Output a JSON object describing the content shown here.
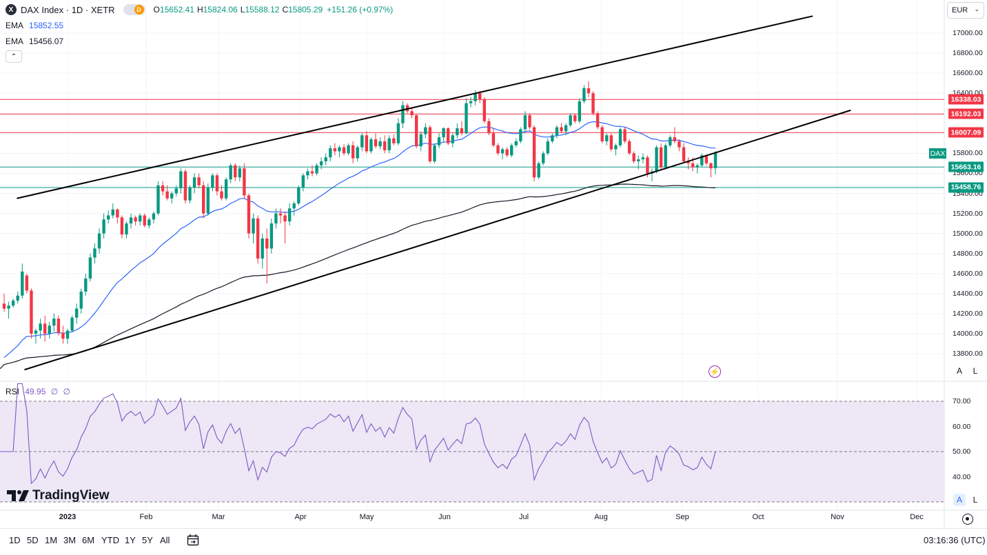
{
  "header": {
    "symbol_title": "DAX Index · 1D · XETR",
    "badge_x": "X",
    "badge_d": "D",
    "ohlc": {
      "o_label": "O",
      "o_value": "15652.41",
      "h_label": "H",
      "h_value": "15824.06",
      "l_label": "L",
      "l_value": "15588.12",
      "c_label": "C",
      "c_value": "15805.29",
      "change": "+151.26 (+0.97%)"
    },
    "ema1": {
      "name": "EMA",
      "value": "15852.55"
    },
    "ema2": {
      "name": "EMA",
      "value": "15456.07"
    },
    "collapse_glyph": "⌃"
  },
  "currency": {
    "label": "EUR",
    "chevron": "⌄"
  },
  "price_axis": {
    "ticks": [
      "17000.00",
      "16800.00",
      "16600.00",
      "16400.00",
      "16200.00",
      "16000.00",
      "15800.00",
      "15600.00",
      "15400.00",
      "15200.00",
      "15000.00",
      "14800.00",
      "14600.00",
      "14400.00",
      "14200.00",
      "14000.00",
      "13800.00"
    ],
    "tags": [
      {
        "label": "16338.03",
        "color": "#f23645"
      },
      {
        "label": "16192.03",
        "color": "#f23645"
      },
      {
        "label": "16007.09",
        "color": "#f23645"
      },
      {
        "label": "15663.16",
        "color": "#089981"
      },
      {
        "label": "15458.76",
        "color": "#089981"
      }
    ],
    "symbol_tag": "DAX",
    "auto_btn": "A",
    "log_btn": "L"
  },
  "rsi": {
    "name": "RSI",
    "value": "49.95",
    "extra1": "∅",
    "extra2": "∅",
    "ticks": [
      "70.00",
      "60.00",
      "50.00",
      "40.00"
    ],
    "auto_btn": "A",
    "log_btn": "L"
  },
  "time_axis": {
    "labels": [
      "2023",
      "Feb",
      "Mar",
      "Apr",
      "May",
      "Jun",
      "Jul",
      "Aug",
      "Sep",
      "Oct",
      "Nov",
      "Dec"
    ]
  },
  "bottom": {
    "ranges": [
      "1D",
      "5D",
      "1M",
      "3M",
      "6M",
      "YTD",
      "1Y",
      "5Y",
      "All"
    ],
    "clock": "03:16:36 (UTC)"
  },
  "brand": {
    "name": "TradingView"
  },
  "colors": {
    "up": "#089981",
    "down": "#f23645",
    "ema_fast": "#2962ff",
    "ema_slow": "#131722",
    "rsi": "#7e57c2",
    "rsi_band": "#ede7f6"
  },
  "icons": {
    "flash": "⚡",
    "calendar": "calendar-icon",
    "reset": "reset-scale-icon"
  },
  "chart_data": {
    "type": "candlestick",
    "price_range": [
      13700,
      17200
    ],
    "horizontal_levels": [
      16338.03,
      16192.03,
      16007.09,
      15663.16,
      15458.76
    ],
    "channel_upper": [
      {
        "x": "2022-12-12",
        "y": 15350
      },
      {
        "x": "2023-10-22",
        "y": 17170
      }
    ],
    "channel_lower": [
      {
        "x": "2022-12-15",
        "y": 13640
      },
      {
        "x": "2023-11-06",
        "y": 16230
      }
    ],
    "candles": [
      [
        14300,
        14400,
        14220,
        14250
      ],
      [
        14250,
        14320,
        14150,
        14280
      ],
      [
        14280,
        14350,
        14260,
        14330
      ],
      [
        14330,
        14420,
        14300,
        14380
      ],
      [
        14380,
        14700,
        14350,
        14620
      ],
      [
        14580,
        14600,
        14400,
        14430
      ],
      [
        14430,
        14450,
        13950,
        14000
      ],
      [
        14000,
        14050,
        13900,
        14030
      ],
      [
        14030,
        14150,
        13950,
        14100
      ],
      [
        14100,
        14180,
        13920,
        14000
      ],
      [
        14000,
        14120,
        13950,
        14080
      ],
      [
        14080,
        14200,
        14020,
        14150
      ],
      [
        14150,
        14180,
        13980,
        14010
      ],
      [
        14010,
        14080,
        13900,
        13950
      ],
      [
        13950,
        14050,
        13900,
        14030
      ],
      [
        14030,
        14180,
        14010,
        14160
      ],
      [
        14160,
        14300,
        14100,
        14250
      ],
      [
        14250,
        14450,
        14200,
        14420
      ],
      [
        14420,
        14600,
        14380,
        14550
      ],
      [
        14550,
        14800,
        14520,
        14760
      ],
      [
        14760,
        14900,
        14700,
        14850
      ],
      [
        14850,
        15050,
        14800,
        15000
      ],
      [
        15000,
        15200,
        14950,
        15140
      ],
      [
        15140,
        15230,
        15100,
        15180
      ],
      [
        15180,
        15300,
        15150,
        15240
      ],
      [
        15240,
        15250,
        15100,
        15160
      ],
      [
        15160,
        15180,
        14950,
        14990
      ],
      [
        14990,
        15120,
        14950,
        15100
      ],
      [
        15100,
        15200,
        15050,
        15160
      ],
      [
        15160,
        15180,
        15080,
        15120
      ],
      [
        15120,
        15200,
        15080,
        15180
      ],
      [
        15180,
        15200,
        15060,
        15080
      ],
      [
        15080,
        15160,
        15050,
        15140
      ],
      [
        15140,
        15220,
        15100,
        15200
      ],
      [
        15200,
        15520,
        15180,
        15480
      ],
      [
        15480,
        15520,
        15380,
        15420
      ],
      [
        15420,
        15480,
        15330,
        15350
      ],
      [
        15350,
        15420,
        15300,
        15400
      ],
      [
        15400,
        15480,
        15370,
        15450
      ],
      [
        15450,
        15650,
        15400,
        15620
      ],
      [
        15620,
        15640,
        15300,
        15330
      ],
      [
        15330,
        15480,
        15300,
        15460
      ],
      [
        15460,
        15600,
        15400,
        15560
      ],
      [
        15560,
        15600,
        15450,
        15480
      ],
      [
        15480,
        15520,
        15150,
        15200
      ],
      [
        15200,
        15500,
        15180,
        15460
      ],
      [
        15460,
        15600,
        15420,
        15580
      ],
      [
        15580,
        15600,
        15380,
        15420
      ],
      [
        15420,
        15480,
        15330,
        15350
      ],
      [
        15350,
        15560,
        15330,
        15540
      ],
      [
        15540,
        15700,
        15500,
        15680
      ],
      [
        15680,
        15700,
        15520,
        15560
      ],
      [
        15560,
        15680,
        15520,
        15650
      ],
      [
        15650,
        15700,
        15350,
        15380
      ],
      [
        15380,
        15400,
        14950,
        15000
      ],
      [
        15000,
        15200,
        14900,
        15150
      ],
      [
        15150,
        15180,
        14700,
        14750
      ],
      [
        14750,
        15000,
        14650,
        14950
      ],
      [
        14950,
        15050,
        14500,
        14850
      ],
      [
        14850,
        15150,
        14800,
        15100
      ],
      [
        15100,
        15250,
        15050,
        15200
      ],
      [
        15200,
        15250,
        15100,
        15180
      ],
      [
        15180,
        15220,
        14900,
        15120
      ],
      [
        15120,
        15300,
        15080,
        15250
      ],
      [
        15250,
        15320,
        15180,
        15300
      ],
      [
        15300,
        15480,
        15280,
        15460
      ],
      [
        15460,
        15600,
        15420,
        15580
      ],
      [
        15580,
        15650,
        15540,
        15620
      ],
      [
        15620,
        15680,
        15570,
        15600
      ],
      [
        15600,
        15700,
        15580,
        15680
      ],
      [
        15680,
        15760,
        15640,
        15720
      ],
      [
        15720,
        15800,
        15680,
        15760
      ],
      [
        15760,
        15880,
        15720,
        15850
      ],
      [
        15850,
        15900,
        15780,
        15820
      ],
      [
        15820,
        15880,
        15760,
        15860
      ],
      [
        15860,
        15890,
        15780,
        15800
      ],
      [
        15800,
        15900,
        15780,
        15880
      ],
      [
        15880,
        15920,
        15700,
        15750
      ],
      [
        15750,
        15880,
        15720,
        15860
      ],
      [
        15860,
        16000,
        15820,
        15980
      ],
      [
        15980,
        16020,
        15800,
        15820
      ],
      [
        15820,
        15960,
        15800,
        15940
      ],
      [
        15940,
        16000,
        15850,
        15870
      ],
      [
        15870,
        15960,
        15840,
        15920
      ],
      [
        15920,
        15980,
        15800,
        15830
      ],
      [
        15830,
        15980,
        15800,
        15950
      ],
      [
        15950,
        15990,
        15880,
        15900
      ],
      [
        15900,
        16150,
        15880,
        16100
      ],
      [
        16100,
        16320,
        16050,
        16280
      ],
      [
        16280,
        16300,
        16200,
        16220
      ],
      [
        16220,
        16250,
        16150,
        16180
      ],
      [
        16180,
        16190,
        15850,
        15870
      ],
      [
        15870,
        16020,
        15820,
        15990
      ],
      [
        15990,
        16100,
        15950,
        16060
      ],
      [
        16060,
        16080,
        15700,
        15720
      ],
      [
        15720,
        15900,
        15700,
        15880
      ],
      [
        15880,
        16000,
        15850,
        15960
      ],
      [
        15960,
        16060,
        15920,
        16050
      ],
      [
        16050,
        16060,
        15880,
        15900
      ],
      [
        15900,
        16000,
        15860,
        15980
      ],
      [
        15980,
        16100,
        15950,
        16050
      ],
      [
        16050,
        16120,
        15980,
        16000
      ],
      [
        16000,
        16350,
        15990,
        16300
      ],
      [
        16300,
        16360,
        16260,
        16320
      ],
      [
        16320,
        16430,
        16280,
        16400
      ],
      [
        16400,
        16420,
        16300,
        16340
      ],
      [
        16340,
        16360,
        16100,
        16120
      ],
      [
        16120,
        16150,
        15980,
        16000
      ],
      [
        16000,
        16050,
        15860,
        15880
      ],
      [
        15880,
        15900,
        15780,
        15800
      ],
      [
        15800,
        15860,
        15740,
        15840
      ],
      [
        15840,
        15860,
        15760,
        15780
      ],
      [
        15780,
        15900,
        15760,
        15880
      ],
      [
        15880,
        15950,
        15860,
        15920
      ],
      [
        15920,
        16060,
        15900,
        16040
      ],
      [
        16040,
        16220,
        16000,
        16180
      ],
      [
        16180,
        16200,
        16040,
        16060
      ],
      [
        16060,
        16080,
        15520,
        15560
      ],
      [
        15560,
        15720,
        15540,
        15700
      ],
      [
        15700,
        15820,
        15680,
        15800
      ],
      [
        15800,
        15950,
        15780,
        15920
      ],
      [
        15920,
        16000,
        15900,
        15980
      ],
      [
        15980,
        16080,
        15950,
        16060
      ],
      [
        16060,
        16100,
        16000,
        16020
      ],
      [
        16020,
        16100,
        15980,
        16080
      ],
      [
        16080,
        16200,
        16060,
        16180
      ],
      [
        16180,
        16200,
        16100,
        16120
      ],
      [
        16120,
        16350,
        16100,
        16320
      ],
      [
        16320,
        16480,
        16300,
        16450
      ],
      [
        16450,
        16520,
        16360,
        16400
      ],
      [
        16400,
        16420,
        16180,
        16200
      ],
      [
        16200,
        16220,
        16040,
        16060
      ],
      [
        16060,
        16080,
        15900,
        15920
      ],
      [
        15920,
        16000,
        15880,
        15980
      ],
      [
        15980,
        16000,
        15820,
        15840
      ],
      [
        15840,
        15900,
        15780,
        15880
      ],
      [
        15880,
        16060,
        15860,
        16040
      ],
      [
        16040,
        16060,
        15900,
        15920
      ],
      [
        15920,
        15940,
        15780,
        15800
      ],
      [
        15800,
        15820,
        15700,
        15720
      ],
      [
        15720,
        15780,
        15640,
        15740
      ],
      [
        15740,
        15800,
        15700,
        15760
      ],
      [
        15760,
        15780,
        15560,
        15600
      ],
      [
        15600,
        15650,
        15520,
        15620
      ],
      [
        15620,
        15880,
        15600,
        15860
      ],
      [
        15860,
        15900,
        15640,
        15660
      ],
      [
        15660,
        15900,
        15640,
        15880
      ],
      [
        15880,
        15980,
        15860,
        15960
      ],
      [
        15960,
        16060,
        15900,
        15920
      ],
      [
        15920,
        15940,
        15820,
        15860
      ],
      [
        15860,
        15900,
        15700,
        15720
      ],
      [
        15720,
        15760,
        15640,
        15700
      ],
      [
        15700,
        15760,
        15620,
        15660
      ],
      [
        15660,
        15700,
        15600,
        15680
      ],
      [
        15680,
        15800,
        15660,
        15780
      ],
      [
        15780,
        15790,
        15680,
        15700
      ],
      [
        15700,
        15710,
        15560,
        15650
      ],
      [
        15652.41,
        15824.06,
        15588.12,
        15805.29
      ]
    ],
    "ema_fast_last": 15852.55,
    "ema_slow_last": 15456.07,
    "rsi_last": 49.95,
    "rsi_range": [
      30,
      80
    ],
    "rsi_levels": [
      70,
      50,
      30
    ]
  }
}
